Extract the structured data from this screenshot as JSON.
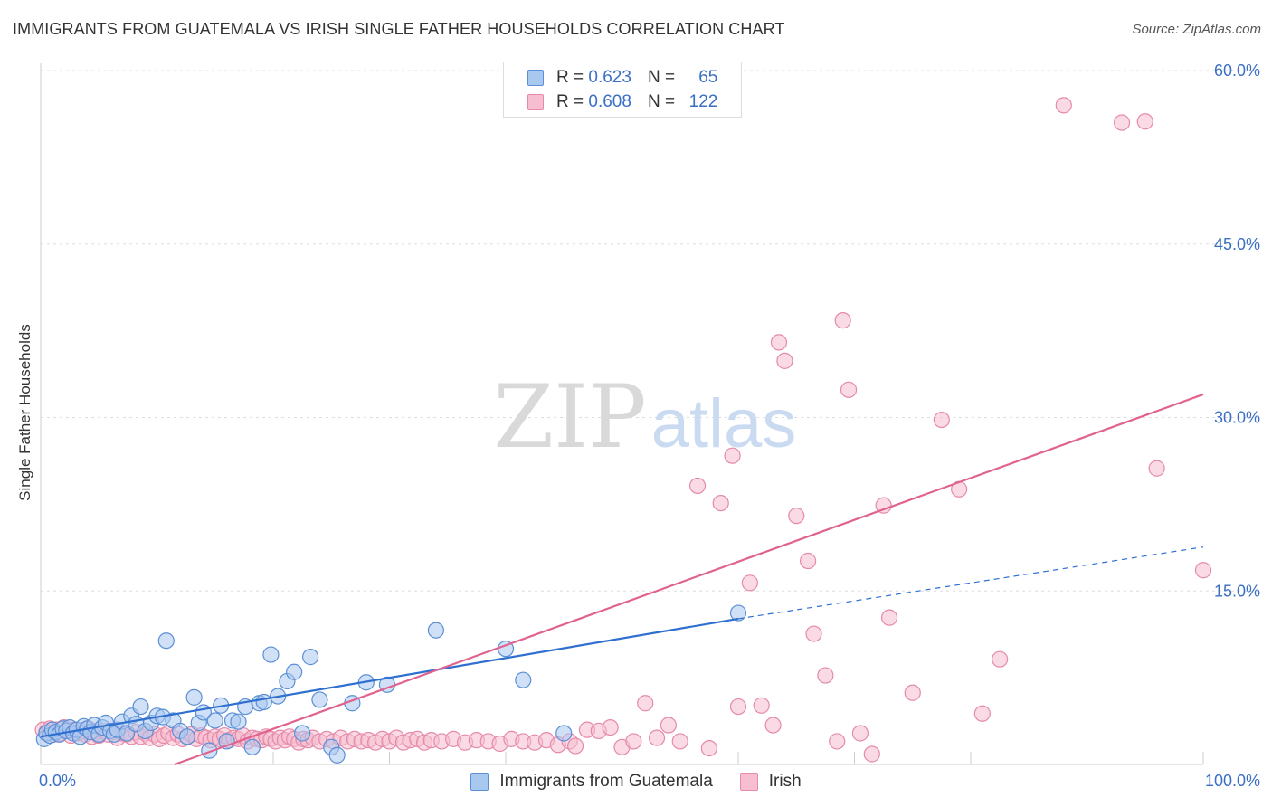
{
  "title": "IMMIGRANTS FROM GUATEMALA VS IRISH SINGLE FATHER HOUSEHOLDS CORRELATION CHART",
  "source": "Source: ZipAtlas.com",
  "watermark": {
    "zip": "ZIP",
    "atlas": "atlas"
  },
  "colors": {
    "blue_fill": "#a9c8f0",
    "blue_stroke": "#5b8fd6",
    "blue_line": "#2f6fd0",
    "pink_fill": "#f6bed0",
    "pink_stroke": "#e58aa8",
    "pink_line": "#e0628f",
    "tick_label": "#3a6fc4",
    "grid": "#dddddd"
  },
  "legend": {
    "r_label": "R =",
    "n_label": "N =",
    "rows": [
      {
        "r": "0.623",
        "n": "65"
      },
      {
        "r": "0.608",
        "n": "122"
      }
    ]
  },
  "chart_data": {
    "type": "scatter",
    "title": "IMMIGRANTS FROM GUATEMALA VS IRISH SINGLE FATHER HOUSEHOLDS CORRELATION CHART",
    "xlabel": "",
    "ylabel": "Single Father Households",
    "xlim": [
      0,
      100
    ],
    "ylim": [
      0,
      60
    ],
    "x_tick_labels": [
      "0.0%",
      "100.0%"
    ],
    "y_ticks": [
      15,
      30,
      45,
      60
    ],
    "y_tick_labels": [
      "15.0%",
      "30.0%",
      "45.0%",
      "60.0%"
    ],
    "grid": true,
    "legend_position": "top-center",
    "series": [
      {
        "name": "Immigrants from Guatemala",
        "r": 0.623,
        "n": 65,
        "trend": {
          "x0": 0,
          "y0": 2.4,
          "x1": 60,
          "y1": 12.6,
          "dash_to_x": 100,
          "dash_to_y": 18.8
        },
        "points": [
          [
            0.3,
            2.2
          ],
          [
            0.5,
            2.7
          ],
          [
            0.8,
            2.5
          ],
          [
            1.0,
            3.0
          ],
          [
            1.3,
            2.8
          ],
          [
            1.6,
            2.6
          ],
          [
            1.9,
            3.1
          ],
          [
            2.2,
            2.9
          ],
          [
            2.5,
            3.2
          ],
          [
            2.8,
            2.7
          ],
          [
            3.1,
            3.0
          ],
          [
            3.4,
            2.4
          ],
          [
            3.7,
            3.3
          ],
          [
            4.0,
            3.1
          ],
          [
            4.3,
            2.8
          ],
          [
            4.6,
            3.4
          ],
          [
            5.0,
            2.6
          ],
          [
            5.3,
            3.2
          ],
          [
            5.6,
            3.6
          ],
          [
            6.0,
            2.9
          ],
          [
            6.3,
            2.6
          ],
          [
            6.6,
            3.0
          ],
          [
            7.0,
            3.7
          ],
          [
            7.4,
            2.7
          ],
          [
            7.8,
            4.2
          ],
          [
            8.2,
            3.5
          ],
          [
            8.6,
            5.0
          ],
          [
            9.0,
            2.9
          ],
          [
            9.5,
            3.6
          ],
          [
            10.0,
            4.2
          ],
          [
            10.5,
            4.1
          ],
          [
            10.8,
            10.7
          ],
          [
            11.4,
            3.8
          ],
          [
            12.0,
            2.9
          ],
          [
            12.6,
            2.4
          ],
          [
            13.2,
            5.8
          ],
          [
            13.6,
            3.6
          ],
          [
            14.0,
            4.5
          ],
          [
            14.5,
            1.2
          ],
          [
            15.0,
            3.8
          ],
          [
            15.5,
            5.1
          ],
          [
            16.0,
            2.0
          ],
          [
            16.5,
            3.8
          ],
          [
            17.0,
            3.7
          ],
          [
            17.6,
            5.0
          ],
          [
            18.2,
            1.5
          ],
          [
            18.8,
            5.3
          ],
          [
            19.2,
            5.4
          ],
          [
            19.8,
            9.5
          ],
          [
            20.4,
            5.9
          ],
          [
            21.2,
            7.2
          ],
          [
            21.8,
            8.0
          ],
          [
            22.5,
            2.7
          ],
          [
            23.2,
            9.3
          ],
          [
            24.0,
            5.6
          ],
          [
            25.0,
            1.5
          ],
          [
            25.5,
            0.8
          ],
          [
            26.8,
            5.3
          ],
          [
            28.0,
            7.1
          ],
          [
            29.8,
            6.9
          ],
          [
            34.0,
            11.6
          ],
          [
            40.0,
            10.0
          ],
          [
            41.5,
            7.3
          ],
          [
            45.0,
            2.7
          ],
          [
            60.0,
            13.1
          ]
        ]
      },
      {
        "name": "Irish",
        "r": 0.608,
        "n": 122,
        "trend": {
          "x0": 11.5,
          "y0": 0,
          "x1": 100,
          "y1": 32.0
        },
        "points": [
          [
            0.2,
            3.0
          ],
          [
            0.5,
            2.8
          ],
          [
            0.8,
            3.1
          ],
          [
            1.1,
            2.6
          ],
          [
            1.4,
            3.0
          ],
          [
            1.7,
            2.7
          ],
          [
            2.0,
            3.2
          ],
          [
            2.3,
            2.9
          ],
          [
            2.6,
            2.5
          ],
          [
            2.9,
            3.0
          ],
          [
            3.2,
            2.7
          ],
          [
            3.5,
            2.9
          ],
          [
            3.8,
            2.6
          ],
          [
            4.1,
            3.1
          ],
          [
            4.4,
            2.4
          ],
          [
            4.7,
            2.8
          ],
          [
            5.0,
            2.5
          ],
          [
            5.4,
            2.9
          ],
          [
            5.8,
            2.6
          ],
          [
            6.2,
            2.8
          ],
          [
            6.6,
            2.3
          ],
          [
            7.0,
            2.7
          ],
          [
            7.4,
            2.6
          ],
          [
            7.8,
            2.4
          ],
          [
            8.2,
            2.8
          ],
          [
            8.6,
            2.4
          ],
          [
            9.0,
            2.7
          ],
          [
            9.4,
            2.3
          ],
          [
            9.8,
            2.6
          ],
          [
            10.2,
            2.2
          ],
          [
            10.6,
            2.5
          ],
          [
            11.0,
            2.7
          ],
          [
            11.4,
            2.3
          ],
          [
            11.8,
            2.6
          ],
          [
            12.2,
            2.2
          ],
          [
            12.6,
            2.4
          ],
          [
            13.0,
            2.6
          ],
          [
            13.4,
            2.2
          ],
          [
            13.8,
            2.5
          ],
          [
            14.2,
            2.3
          ],
          [
            14.6,
            2.1
          ],
          [
            15.0,
            2.4
          ],
          [
            15.4,
            2.2
          ],
          [
            15.8,
            2.5
          ],
          [
            16.2,
            2.1
          ],
          [
            16.6,
            2.3
          ],
          [
            17.0,
            2.2
          ],
          [
            17.4,
            2.5
          ],
          [
            17.8,
            2.0
          ],
          [
            18.2,
            2.3
          ],
          [
            18.6,
            2.2
          ],
          [
            19.0,
            2.1
          ],
          [
            19.4,
            2.4
          ],
          [
            19.8,
            2.2
          ],
          [
            20.2,
            2.0
          ],
          [
            20.6,
            2.3
          ],
          [
            21.0,
            2.1
          ],
          [
            21.4,
            2.4
          ],
          [
            21.8,
            2.2
          ],
          [
            22.2,
            1.9
          ],
          [
            22.6,
            2.2
          ],
          [
            23.0,
            2.1
          ],
          [
            23.4,
            2.3
          ],
          [
            24.0,
            2.0
          ],
          [
            24.6,
            2.2
          ],
          [
            25.2,
            2.0
          ],
          [
            25.8,
            2.3
          ],
          [
            26.4,
            2.0
          ],
          [
            27.0,
            2.2
          ],
          [
            27.6,
            2.0
          ],
          [
            28.2,
            2.1
          ],
          [
            28.8,
            1.9
          ],
          [
            29.4,
            2.2
          ],
          [
            30.0,
            2.0
          ],
          [
            30.6,
            2.3
          ],
          [
            31.2,
            1.9
          ],
          [
            31.8,
            2.1
          ],
          [
            32.4,
            2.2
          ],
          [
            33.0,
            1.9
          ],
          [
            33.6,
            2.1
          ],
          [
            34.5,
            2.0
          ],
          [
            35.5,
            2.2
          ],
          [
            36.5,
            1.9
          ],
          [
            37.5,
            2.1
          ],
          [
            38.5,
            2.0
          ],
          [
            39.5,
            1.8
          ],
          [
            40.5,
            2.2
          ],
          [
            41.5,
            2.0
          ],
          [
            42.5,
            1.9
          ],
          [
            43.5,
            2.1
          ],
          [
            44.5,
            1.7
          ],
          [
            45.5,
            2.0
          ],
          [
            46.0,
            1.6
          ],
          [
            47.0,
            3.0
          ],
          [
            48.0,
            2.9
          ],
          [
            49.0,
            3.2
          ],
          [
            50.0,
            1.5
          ],
          [
            51.0,
            2.0
          ],
          [
            52.0,
            5.3
          ],
          [
            53.0,
            2.3
          ],
          [
            54.0,
            3.4
          ],
          [
            55.0,
            2.0
          ],
          [
            56.5,
            24.1
          ],
          [
            57.5,
            1.4
          ],
          [
            58.5,
            22.6
          ],
          [
            59.5,
            26.7
          ],
          [
            60.0,
            5.0
          ],
          [
            61.0,
            15.7
          ],
          [
            62.0,
            5.1
          ],
          [
            63.0,
            3.4
          ],
          [
            63.5,
            36.5
          ],
          [
            64.0,
            34.9
          ],
          [
            65.0,
            21.5
          ],
          [
            66.0,
            17.6
          ],
          [
            66.5,
            11.3
          ],
          [
            67.5,
            7.7
          ],
          [
            68.5,
            2.0
          ],
          [
            69.0,
            38.4
          ],
          [
            69.5,
            32.4
          ],
          [
            70.5,
            2.7
          ],
          [
            71.5,
            0.9
          ],
          [
            72.5,
            22.4
          ],
          [
            73.0,
            12.7
          ],
          [
            75.0,
            6.2
          ],
          [
            77.5,
            29.8
          ],
          [
            79.0,
            23.8
          ],
          [
            81.0,
            4.4
          ],
          [
            82.5,
            9.1
          ],
          [
            88.0,
            57.0
          ],
          [
            93.0,
            55.5
          ],
          [
            95.0,
            55.6
          ],
          [
            96.0,
            25.6
          ],
          [
            100.0,
            16.8
          ]
        ]
      }
    ]
  }
}
